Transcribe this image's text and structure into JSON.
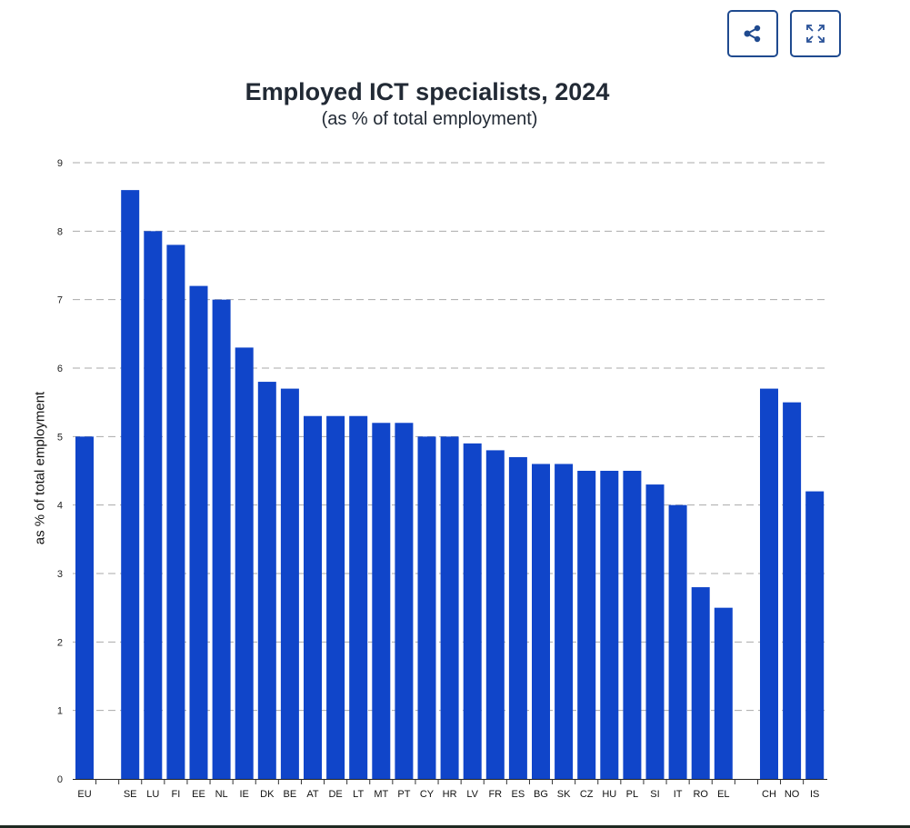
{
  "toolbar": {
    "share_label": "Share",
    "fullscreen_label": "Fullscreen",
    "share_icon": "share-icon",
    "fullscreen_icon": "expand-icon"
  },
  "colors": {
    "bar": "#1045c9",
    "grid": "#aaaaaa",
    "button_border": "#1f4a8f",
    "title": "#222a35"
  },
  "chart_data": {
    "type": "bar",
    "title": "Employed ICT specialists, 2024",
    "subtitle": "(as % of total employment)",
    "xlabel": "",
    "ylabel": "as % of total employment",
    "ylim": [
      0,
      9
    ],
    "yticks": [
      0,
      1,
      2,
      3,
      4,
      5,
      6,
      7,
      8,
      9
    ],
    "grid": true,
    "legend": "none",
    "categories": [
      "EU",
      "",
      "SE",
      "LU",
      "FI",
      "EE",
      "NL",
      "IE",
      "DK",
      "BE",
      "AT",
      "DE",
      "LT",
      "MT",
      "PT",
      "CY",
      "HR",
      "LV",
      "FR",
      "ES",
      "BG",
      "SK",
      "CZ",
      "HU",
      "PL",
      "SI",
      "IT",
      "RO",
      "EL",
      "",
      "CH",
      "NO",
      "IS"
    ],
    "values": [
      5.0,
      null,
      8.6,
      8.0,
      7.8,
      7.2,
      7.0,
      6.3,
      5.8,
      5.7,
      5.3,
      5.3,
      5.3,
      5.2,
      5.2,
      5.0,
      5.0,
      4.9,
      4.8,
      4.7,
      4.6,
      4.6,
      4.5,
      4.5,
      4.5,
      4.3,
      4.0,
      2.8,
      2.5,
      null,
      5.7,
      5.5,
      4.2
    ]
  }
}
